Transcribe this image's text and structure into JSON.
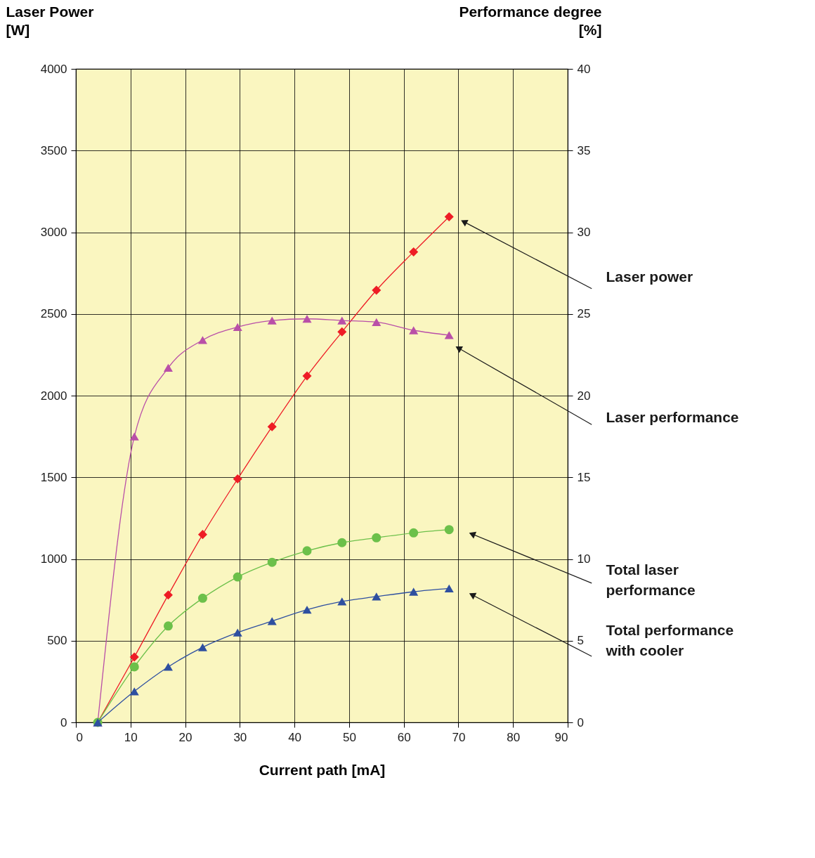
{
  "chart_data": {
    "type": "line",
    "xlabel": "Current path [mA]",
    "ylabel": "Laser Power [W]",
    "y2label": "Performance degree [%]",
    "xlim": [
      0,
      90
    ],
    "xticks": [
      0,
      10,
      20,
      30,
      40,
      50,
      60,
      70,
      80,
      90
    ],
    "ylim": [
      0,
      4000
    ],
    "yticks": [
      0,
      500,
      1000,
      1500,
      2000,
      2500,
      3000,
      3500,
      4000
    ],
    "y2lim": [
      0,
      40
    ],
    "y2ticks": [
      0,
      5,
      10,
      15,
      20,
      25,
      30,
      35,
      40
    ],
    "grid": true,
    "x": [
      4.0,
      10.7,
      16.9,
      23.2,
      29.6,
      35.9,
      42.3,
      48.7,
      55.0,
      61.8,
      68.3
    ],
    "series": [
      {
        "color": "#ee1c25",
        "marker": "diamond",
        "values": [
          0,
          400,
          780,
          1150,
          1490,
          1810,
          2120,
          2390,
          2645,
          2880,
          3095
        ]
      },
      {
        "color": "#b94fa8",
        "marker": "triangle",
        "axis": "y2",
        "values": [
          0,
          17.5,
          21.7,
          23.4,
          24.2,
          24.6,
          24.7,
          24.6,
          24.5,
          24.0,
          23.7
        ]
      },
      {
        "color": "#6cc04a",
        "marker": "circle",
        "axis": "y2",
        "values": [
          0,
          3.4,
          5.9,
          7.6,
          8.9,
          9.8,
          10.5,
          11.0,
          11.3,
          11.6,
          11.8
        ]
      },
      {
        "color": "#2e4fa0",
        "marker": "triangle",
        "axis": "y2",
        "values": [
          0,
          1.9,
          3.4,
          4.6,
          5.5,
          6.2,
          6.9,
          7.4,
          7.7,
          8.0,
          8.2
        ]
      }
    ],
    "annotations": [
      {
        "text": "Laser power",
        "x": 71,
        "y": 3064
      },
      {
        "text": "Laser performance",
        "x": 70,
        "y": 2291
      },
      {
        "text": "Total laser performance",
        "x": 72.5,
        "y": 1153
      },
      {
        "text": "Total performance with cooler",
        "x": 72.5,
        "y": 781
      }
    ]
  }
}
